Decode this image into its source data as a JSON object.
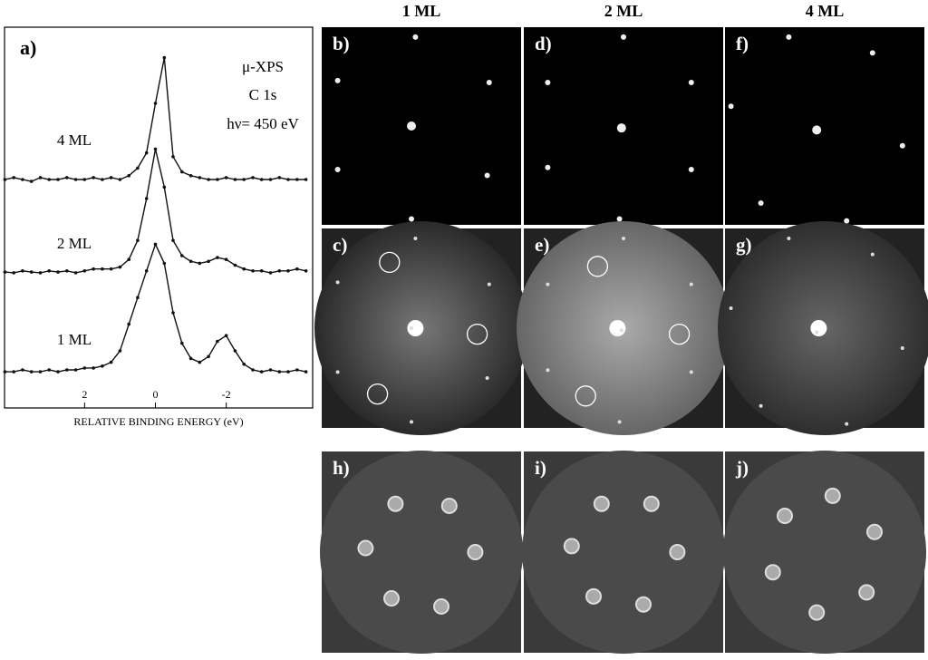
{
  "chart_data": {
    "type": "line",
    "panel_label": "a)",
    "xlabel": "RELATIVE BINDING ENERGY (eV)",
    "annotations": [
      "μ-XPS",
      "C 1s",
      "hν= 450 eV"
    ],
    "x": [
      4.25,
      4,
      3.75,
      3.5,
      3.25,
      3,
      2.75,
      2.5,
      2.25,
      2,
      1.75,
      1.5,
      1.25,
      1,
      0.75,
      0.5,
      0.25,
      0,
      -0.25,
      -0.5,
      -0.75,
      -1,
      -1.25,
      -1.5,
      -1.75,
      -2,
      -2.25,
      -2.5,
      -2.75,
      -3,
      -3.25,
      -3.5,
      -3.75,
      -4,
      -4.25
    ],
    "series": [
      {
        "name": "4 ML",
        "color": "#111111",
        "values": [
          60,
          60.5,
          60,
          59.5,
          60.5,
          60,
          60,
          60.5,
          60,
          60,
          60.5,
          60,
          60.5,
          60,
          61,
          63,
          67,
          80,
          92,
          66,
          62,
          61,
          60.5,
          60,
          60,
          60.5,
          60,
          60,
          60.5,
          60,
          60,
          60.5,
          60,
          60,
          60
        ]
      },
      {
        "name": "2 ML",
        "color": "#111111",
        "values": [
          35.7,
          35.5,
          36,
          35.7,
          35.5,
          36,
          35.7,
          36,
          35.5,
          36,
          36.5,
          36.5,
          36.5,
          37,
          39,
          44,
          55,
          68,
          58,
          44,
          40,
          38.5,
          38,
          38.5,
          39.5,
          39,
          37.5,
          36.5,
          36,
          36,
          35.5,
          36,
          36,
          36.5,
          36
        ]
      },
      {
        "name": "1 ML",
        "color": "#111111",
        "values": [
          9.5,
          9.5,
          10,
          9.5,
          9.5,
          10,
          9.5,
          10,
          10,
          10.5,
          10.5,
          11,
          12,
          15,
          22,
          29,
          36,
          43,
          38,
          25,
          17,
          13,
          12,
          13.5,
          17.5,
          19,
          15,
          11.5,
          10,
          9.5,
          10,
          9.5,
          9.5,
          10,
          9.5
        ]
      }
    ],
    "xlim": [
      4.26,
      -4.44
    ],
    "ylim": [
      0,
      100
    ],
    "xticks": [
      2,
      0,
      -2
    ]
  },
  "columns": [
    "1 ML",
    "2 ML",
    "4 ML"
  ],
  "panels": [
    "b)",
    "d)",
    "f)",
    "c)",
    "e)",
    "g)",
    "h)",
    "i)",
    "j)"
  ]
}
